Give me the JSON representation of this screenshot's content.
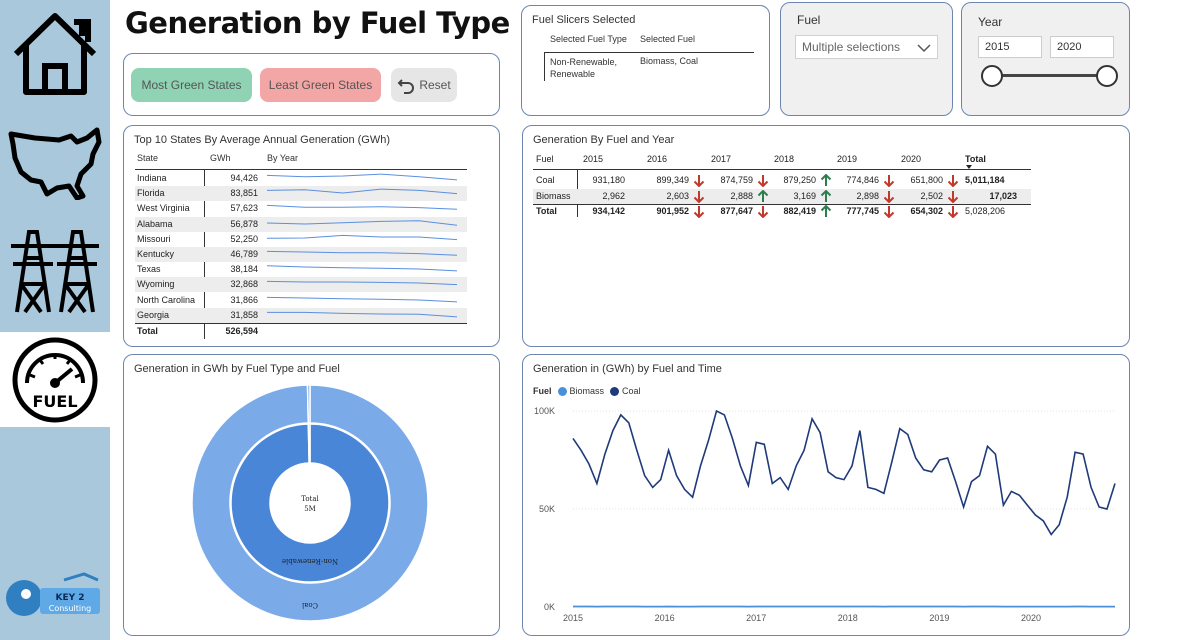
{
  "page": {
    "title": "Generation by Fuel Type"
  },
  "nav": {
    "items": [
      {
        "name": "home",
        "icon": "house-icon"
      },
      {
        "name": "states",
        "icon": "usa-map-icon"
      },
      {
        "name": "generation",
        "icon": "power-tower-icon"
      },
      {
        "name": "fuel",
        "icon": "fuel-gauge-icon",
        "label": "FUEL",
        "active": true
      }
    ],
    "logo": {
      "text_line1": "KEY 2",
      "text_line2": "Consulting"
    }
  },
  "buttons": {
    "most_green": "Most Green States",
    "least_green": "Least Green States",
    "reset": "Reset"
  },
  "slicers_selected": {
    "title": "Fuel Slicers Selected",
    "headers": [
      "Selected Fuel Type",
      "Selected Fuel"
    ],
    "fuel_type": "Non-Renewable, Renewable",
    "fuel": "Biomass, Coal"
  },
  "fuel_filter": {
    "label": "Fuel",
    "value": "Multiple selections"
  },
  "year_filter": {
    "label": "Year",
    "from": "2015",
    "to": "2020"
  },
  "top_states": {
    "title": "Top 10 States By Average Annual Generation (GWh)",
    "headers": [
      "State",
      "GWh",
      "By Year"
    ],
    "rows": [
      {
        "state": "Indiana",
        "gwh": "94,426",
        "trend": [
          3,
          2.6,
          2.8,
          3.4,
          2.6,
          1.6
        ]
      },
      {
        "state": "Florida",
        "gwh": "83,851",
        "trend": [
          3,
          3.2,
          2.2,
          3.4,
          3,
          2
        ]
      },
      {
        "state": "West Virginia",
        "gwh": "57,623",
        "trend": [
          3,
          2.4,
          2.4,
          2.6,
          2.3,
          1.8
        ]
      },
      {
        "state": "Alabama",
        "gwh": "56,878",
        "trend": [
          2.5,
          2.2,
          2.6,
          3,
          3.2,
          1.8
        ]
      },
      {
        "state": "Missouri",
        "gwh": "52,250",
        "trend": [
          2.4,
          2.5,
          3.3,
          2.8,
          2.8,
          2
        ]
      },
      {
        "state": "Kentucky",
        "gwh": "46,789",
        "trend": [
          3,
          2.8,
          2.6,
          2.6,
          2.3,
          1.8
        ]
      },
      {
        "state": "Texas",
        "gwh": "38,184",
        "trend": [
          3.2,
          2.8,
          2.6,
          2.4,
          2.2,
          1.6
        ]
      },
      {
        "state": "Wyoming",
        "gwh": "32,868",
        "trend": [
          3,
          2.8,
          2.8,
          2.7,
          2.5,
          2
        ]
      },
      {
        "state": "North Carolina",
        "gwh": "31,866",
        "trend": [
          3,
          2.8,
          2.6,
          2.4,
          2.2,
          1.6
        ]
      },
      {
        "state": "Georgia",
        "gwh": "31,858",
        "trend": [
          3,
          3,
          2.7,
          2.5,
          2.4,
          1.6
        ]
      }
    ],
    "total_label": "Total",
    "total_value": "526,594"
  },
  "fuel_year": {
    "title": "Generation By Fuel and Year",
    "headers": [
      "Fuel",
      "2015",
      "2016",
      "2017",
      "2018",
      "2019",
      "2020",
      "Total"
    ],
    "rows": [
      {
        "fuel": "Coal",
        "values": [
          "931,180",
          "899,349",
          "874,759",
          "879,250",
          "774,846",
          "651,800"
        ],
        "arrows": [
          "",
          "down",
          "down",
          "up",
          "down",
          "down"
        ],
        "total": "5,011,184"
      },
      {
        "fuel": "Biomass",
        "values": [
          "2,962",
          "2,603",
          "2,888",
          "3,169",
          "2,898",
          "2,502"
        ],
        "arrows": [
          "",
          "down",
          "up",
          "up",
          "down",
          "down"
        ],
        "total": "17,023"
      },
      {
        "fuel": "Total",
        "values": [
          "934,142",
          "901,952",
          "877,647",
          "882,419",
          "777,745",
          "654,302"
        ],
        "arrows": [
          "",
          "down",
          "down",
          "up",
          "down",
          "down"
        ],
        "total": "5,028,206"
      }
    ],
    "colors": {
      "up": "#2e7d4f",
      "down": "#c0392b"
    }
  },
  "donut": {
    "title": "Generation in GWh by Fuel Type and Fuel",
    "center_line1": "Total",
    "center_line2": "5M",
    "inner_label": "Non-Renewable",
    "outer_label": "Coal"
  },
  "chart_data": [
    {
      "type": "pie",
      "title": "Generation in GWh by Fuel Type and Fuel",
      "rings": [
        {
          "level": "Fuel Type",
          "slices": [
            {
              "name": "Non-Renewable",
              "value": 5011184
            },
            {
              "name": "Renewable",
              "value": 17023
            }
          ]
        },
        {
          "level": "Fuel",
          "slices": [
            {
              "name": "Coal",
              "value": 5011184
            },
            {
              "name": "Biomass",
              "value": 17023
            }
          ]
        }
      ],
      "colors": {
        "inner": "#4a86d8",
        "outer": "#7aaae8"
      }
    },
    {
      "type": "line",
      "title": "Generation in (GWh) by Fuel and Time",
      "legend_title": "Fuel",
      "legend": [
        "Biomass",
        "Coal"
      ],
      "colors": {
        "Biomass": "#4a90d9",
        "Coal": "#1f3a7a"
      },
      "yticks": [
        "0K",
        "50K",
        "100K"
      ],
      "ylim": [
        0,
        100000
      ],
      "xticks": [
        "2015",
        "2016",
        "2017",
        "2018",
        "2019",
        "2020"
      ],
      "x_start": 2015.0,
      "x_end": 2020.917,
      "series": [
        {
          "name": "Coal",
          "values": [
            86000,
            80000,
            73000,
            63000,
            78000,
            90000,
            98000,
            94000,
            80000,
            67000,
            61000,
            65000,
            80000,
            67000,
            60000,
            56000,
            72000,
            85000,
            100000,
            98000,
            86000,
            72000,
            62000,
            84000,
            83000,
            63000,
            66000,
            60000,
            72000,
            80000,
            96000,
            89000,
            69000,
            66000,
            65000,
            72000,
            90000,
            61000,
            60000,
            58000,
            74000,
            91000,
            88000,
            76000,
            70000,
            69000,
            75000,
            76000,
            64000,
            51000,
            64000,
            67000,
            82000,
            78000,
            52000,
            59000,
            57000,
            52000,
            47000,
            44000,
            37000,
            42000,
            56000,
            79000,
            78000,
            61000,
            51000,
            50000,
            63000
          ]
        },
        {
          "name": "Biomass",
          "values": [
            250,
            240,
            230,
            220,
            240,
            260,
            270,
            260,
            240,
            220,
            210,
            220,
            230,
            220,
            210,
            200,
            230,
            250,
            260,
            250,
            240,
            230,
            220,
            240,
            260,
            240,
            250,
            250,
            260,
            270,
            280,
            270,
            250,
            240,
            250,
            260,
            260,
            240,
            230,
            220,
            240,
            260,
            270,
            260,
            240,
            230,
            240,
            250,
            240,
            220,
            230,
            230,
            240,
            240,
            220,
            220,
            210,
            200,
            200,
            190,
            180,
            200,
            220,
            230,
            230,
            210,
            200,
            200,
            210
          ]
        }
      ]
    }
  ]
}
